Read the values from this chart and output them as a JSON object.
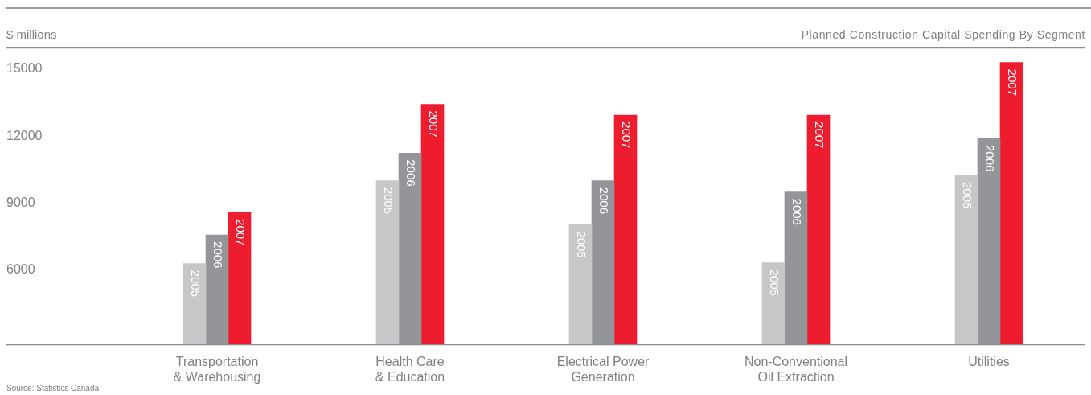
{
  "chart_data": {
    "type": "bar",
    "title": "Planned Construction Capital Spending By Segment",
    "ylabel": "$ millions",
    "annotations": [
      "Source: Statistics Canada"
    ],
    "categories": [
      "Transportation & Warehousing",
      "Health Care & Education",
      "Electrical Power Generation",
      "Non-Conventional Oil Extraction",
      "Utilities"
    ],
    "series": [
      {
        "name": "2005",
        "color": "#c6c7c9",
        "values": [
          6290,
          10000,
          8030,
          6330,
          10240
        ]
      },
      {
        "name": "2006",
        "color": "#939598",
        "values": [
          7570,
          11240,
          10000,
          9500,
          11900
        ]
      },
      {
        "name": "2007",
        "color": "#ed1c2e",
        "values": [
          8580,
          13430,
          12940,
          12940,
          15300
        ]
      }
    ],
    "ylim": [
      2650,
      15950
    ],
    "yticks": [
      6000,
      9000,
      12000,
      15000
    ],
    "grid": false,
    "legend": false
  }
}
